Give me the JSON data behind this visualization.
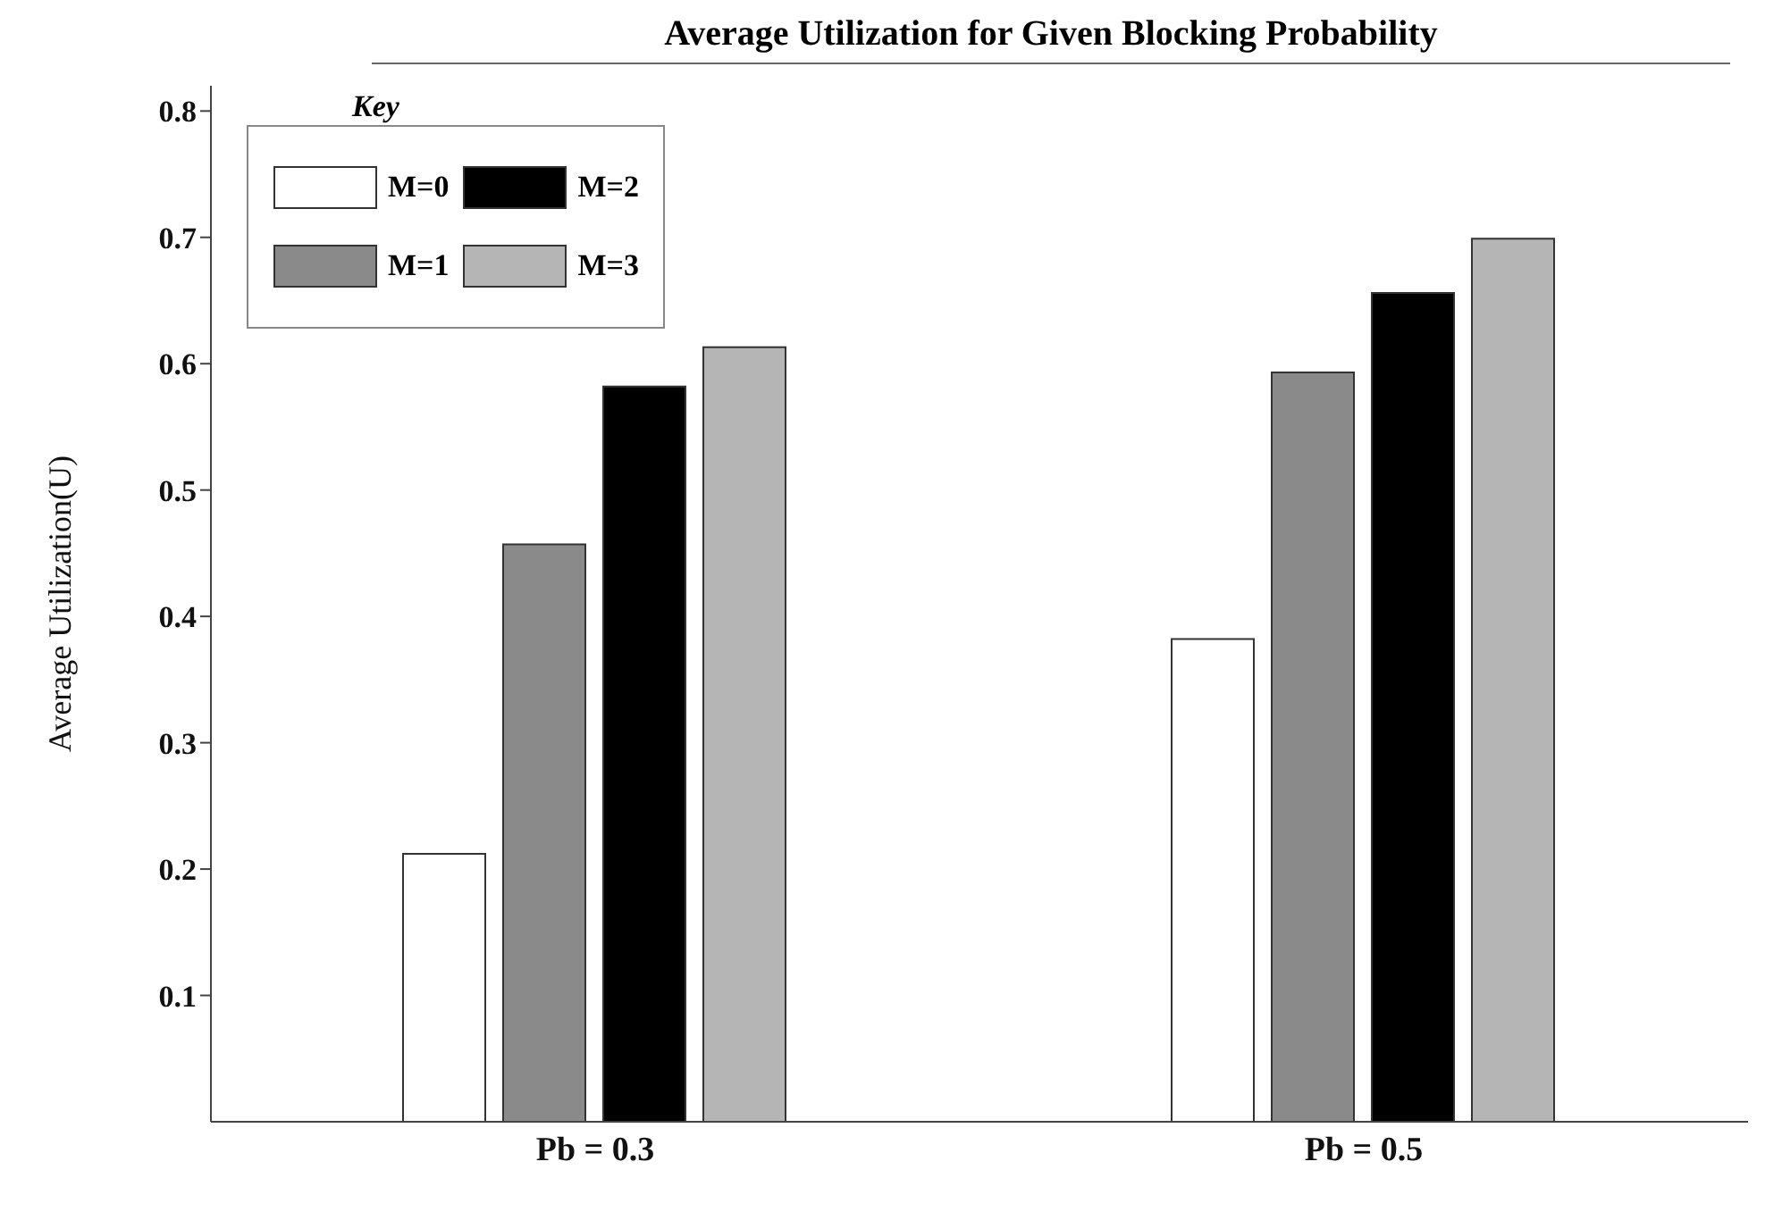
{
  "chart_data": {
    "type": "bar",
    "title": "Average Utilization for Given Blocking Probability",
    "ylabel": "Average Utilization(U)",
    "legend_title": "Key",
    "categories": [
      "Pb = 0.3",
      "Pb = 0.5"
    ],
    "series": [
      {
        "name": "M=0",
        "color": "#ffffff",
        "values": [
          0.212,
          0.382
        ]
      },
      {
        "name": "M=1",
        "color": "#8a8a8a",
        "values": [
          0.457,
          0.593
        ]
      },
      {
        "name": "M=2",
        "color": "#000000",
        "values": [
          0.582,
          0.656
        ]
      },
      {
        "name": "M=3",
        "color": "#b5b5b5",
        "values": [
          0.613,
          0.699
        ]
      }
    ],
    "ylim": [
      0,
      0.82
    ],
    "yticks": [
      0.1,
      0.2,
      0.3,
      0.4,
      0.5,
      0.6,
      0.7,
      0.8
    ],
    "grid": false,
    "legend": "top left"
  }
}
